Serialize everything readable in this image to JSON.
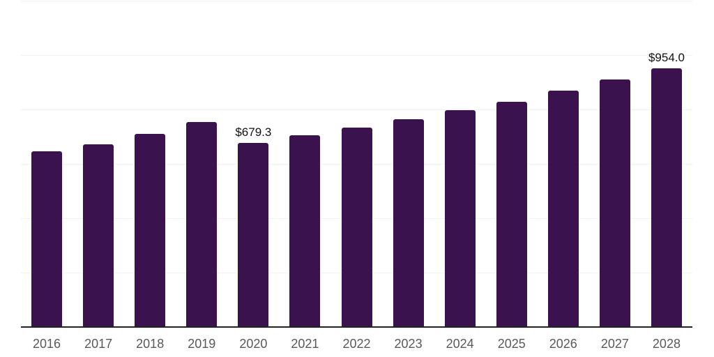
{
  "chart_data": {
    "type": "bar",
    "title": "",
    "xlabel": "",
    "ylabel": "",
    "categories": [
      "2016",
      "2017",
      "2018",
      "2019",
      "2020",
      "2021",
      "2022",
      "2023",
      "2024",
      "2025",
      "2026",
      "2027",
      "2028"
    ],
    "values": [
      650,
      675,
      714,
      757,
      679.3,
      707,
      735,
      766,
      799,
      832,
      871,
      912,
      954
    ],
    "value_prefix": "$",
    "data_labels": {
      "2020": "$679.3",
      "2028": "$954.0"
    },
    "ylim": [
      0,
      1200
    ],
    "ytick_step": 200,
    "grid": "horizontal-light",
    "legend": "none",
    "colors": {
      "bar": "#39124E",
      "axis_line": "#222222",
      "gridline": "#f2f2f5",
      "x_label_text": "#58595B",
      "data_label_text": "#111111",
      "background": "#ffffff"
    }
  }
}
